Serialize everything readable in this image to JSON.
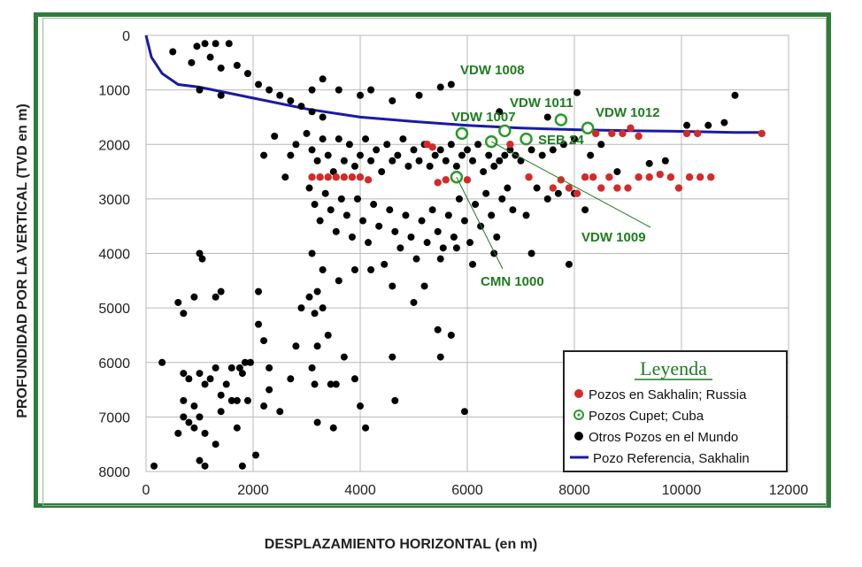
{
  "chart_data": {
    "type": "scatter",
    "xlabel": "DESPLAZAMIENTO HORIZONTAL (en m)",
    "ylabel": "PROFUNDIDAD POR LA VERTICAL (TVD en m)",
    "xlim": [
      0,
      12000
    ],
    "ylim": [
      0,
      8000
    ],
    "y_inverted": true,
    "grid": true,
    "xticks": [
      "0",
      "2000",
      "4000",
      "6000",
      "8000",
      "10000",
      "12000"
    ],
    "yticks": [
      "0",
      "1000",
      "2000",
      "3000",
      "4000",
      "5000",
      "6000",
      "7000",
      "8000"
    ],
    "legend": {
      "title": "Leyenda",
      "position": "bottom-right",
      "items": [
        "Pozos en Sakhalin; Russia",
        "Pozos Cupet; Cuba",
        "Otros Pozos en el Mundo",
        "Pozo Referencia, Sakhalin"
      ]
    },
    "colors": {
      "sakhalin": "#d42a2a",
      "cupet": "#2a9a2a",
      "otros": "#000000",
      "referencia": "#1a1aa6"
    },
    "series": [
      {
        "name": "Pozos en Sakhalin; Russia",
        "points": [
          [
            3100,
            2600
          ],
          [
            3250,
            2600
          ],
          [
            3400,
            2600
          ],
          [
            3550,
            2600
          ],
          [
            3700,
            2600
          ],
          [
            3850,
            2600
          ],
          [
            4000,
            2600
          ],
          [
            4150,
            2650
          ],
          [
            5250,
            2000
          ],
          [
            5350,
            2050
          ],
          [
            5450,
            2700
          ],
          [
            5600,
            2650
          ],
          [
            6000,
            2650
          ],
          [
            6800,
            2000
          ],
          [
            7150,
            2600
          ],
          [
            7600,
            2800
          ],
          [
            7750,
            2650
          ],
          [
            7900,
            2800
          ],
          [
            8050,
            2900
          ],
          [
            8200,
            2600
          ],
          [
            8350,
            2600
          ],
          [
            8500,
            2800
          ],
          [
            8650,
            2600
          ],
          [
            8800,
            2800
          ],
          [
            9000,
            2800
          ],
          [
            9200,
            2600
          ],
          [
            9400,
            2600
          ],
          [
            9600,
            2550
          ],
          [
            9800,
            2600
          ],
          [
            9950,
            2800
          ],
          [
            10150,
            2600
          ],
          [
            10350,
            2600
          ],
          [
            10550,
            2600
          ],
          [
            8400,
            1800
          ],
          [
            8700,
            1800
          ],
          [
            8900,
            1800
          ],
          [
            9050,
            1700
          ],
          [
            9200,
            1850
          ],
          [
            10100,
            1800
          ],
          [
            10300,
            1800
          ],
          [
            11500,
            1800
          ]
        ]
      },
      {
        "name": "Pozos Cupet; Cuba",
        "points": [
          [
            5900,
            1800
          ],
          [
            6700,
            1750
          ],
          [
            7750,
            1550
          ],
          [
            8250,
            1700
          ],
          [
            7100,
            1900
          ],
          [
            6450,
            1950
          ],
          [
            5800,
            2600
          ]
        ]
      },
      {
        "name": "Otros Pozos en el Mundo",
        "points": [
          [
            500,
            300
          ],
          [
            850,
            500
          ],
          [
            950,
            200
          ],
          [
            1100,
            150
          ],
          [
            1300,
            150
          ],
          [
            1550,
            150
          ],
          [
            1200,
            400
          ],
          [
            1400,
            600
          ],
          [
            1700,
            550
          ],
          [
            1900,
            700
          ],
          [
            2100,
            900
          ],
          [
            2300,
            1000
          ],
          [
            2500,
            1100
          ],
          [
            2700,
            1200
          ],
          [
            2900,
            1300
          ],
          [
            3100,
            1400
          ],
          [
            3300,
            1500
          ],
          [
            3100,
            1000
          ],
          [
            3300,
            800
          ],
          [
            3600,
            1000
          ],
          [
            4000,
            1100
          ],
          [
            4200,
            1000
          ],
          [
            4600,
            1200
          ],
          [
            5100,
            1100
          ],
          [
            5500,
            950
          ],
          [
            5700,
            900
          ],
          [
            6600,
            1400
          ],
          [
            7500,
            1500
          ],
          [
            8050,
            1050
          ],
          [
            10100,
            1650
          ],
          [
            10500,
            1650
          ],
          [
            10800,
            1600
          ],
          [
            11000,
            1100
          ],
          [
            1000,
            1000
          ],
          [
            1400,
            1100
          ],
          [
            2200,
            2200
          ],
          [
            2400,
            1850
          ],
          [
            2600,
            2600
          ],
          [
            2700,
            2200
          ],
          [
            2800,
            2000
          ],
          [
            3000,
            1800
          ],
          [
            3100,
            2100
          ],
          [
            3200,
            2300
          ],
          [
            3300,
            1900
          ],
          [
            3400,
            2200
          ],
          [
            3500,
            2500
          ],
          [
            3600,
            1900
          ],
          [
            3700,
            2300
          ],
          [
            3800,
            2000
          ],
          [
            3900,
            2400
          ],
          [
            4000,
            2200
          ],
          [
            4100,
            1900
          ],
          [
            4200,
            2300
          ],
          [
            4300,
            2100
          ],
          [
            4400,
            2500
          ],
          [
            4500,
            2000
          ],
          [
            4600,
            2300
          ],
          [
            4700,
            2200
          ],
          [
            4800,
            1900
          ],
          [
            4900,
            2400
          ],
          [
            5000,
            2100
          ],
          [
            5100,
            2300
          ],
          [
            5200,
            2000
          ],
          [
            5300,
            2400
          ],
          [
            5400,
            2200
          ],
          [
            5500,
            2100
          ],
          [
            5600,
            2300
          ],
          [
            5700,
            2000
          ],
          [
            5800,
            2400
          ],
          [
            5900,
            2200
          ],
          [
            6000,
            2100
          ],
          [
            6100,
            2300
          ],
          [
            6200,
            2000
          ],
          [
            6300,
            2500
          ],
          [
            6400,
            2200
          ],
          [
            6500,
            2400
          ],
          [
            6600,
            2300
          ],
          [
            6700,
            2200
          ],
          [
            6800,
            2100
          ],
          [
            6900,
            2200
          ],
          [
            7000,
            2300
          ],
          [
            7200,
            2100
          ],
          [
            7400,
            2200
          ],
          [
            7600,
            2100
          ],
          [
            7800,
            2000
          ],
          [
            8000,
            1900
          ],
          [
            8300,
            2200
          ],
          [
            8500,
            2000
          ],
          [
            8800,
            2500
          ],
          [
            9400,
            2350
          ],
          [
            9700,
            2300
          ],
          [
            3050,
            2800
          ],
          [
            3150,
            3100
          ],
          [
            3250,
            3400
          ],
          [
            3350,
            2900
          ],
          [
            3450,
            3200
          ],
          [
            3550,
            3600
          ],
          [
            3650,
            3000
          ],
          [
            3750,
            3300
          ],
          [
            3850,
            3700
          ],
          [
            3950,
            3000
          ],
          [
            4050,
            3400
          ],
          [
            4150,
            3800
          ],
          [
            4250,
            3100
          ],
          [
            4350,
            3500
          ],
          [
            4450,
            4200
          ],
          [
            4550,
            3200
          ],
          [
            4650,
            3600
          ],
          [
            4750,
            3900
          ],
          [
            4850,
            3300
          ],
          [
            4950,
            3700
          ],
          [
            5050,
            4100
          ],
          [
            5150,
            3400
          ],
          [
            5250,
            3800
          ],
          [
            5350,
            3200
          ],
          [
            5450,
            3600
          ],
          [
            5550,
            3900
          ],
          [
            5650,
            3300
          ],
          [
            5750,
            3700
          ],
          [
            5850,
            3000
          ],
          [
            5950,
            3400
          ],
          [
            6050,
            3800
          ],
          [
            6150,
            3100
          ],
          [
            6250,
            3500
          ],
          [
            6350,
            2900
          ],
          [
            6450,
            3300
          ],
          [
            6550,
            3700
          ],
          [
            6650,
            3000
          ],
          [
            6750,
            2800
          ],
          [
            6850,
            3200
          ],
          [
            7100,
            3300
          ],
          [
            7300,
            2800
          ],
          [
            7500,
            3000
          ],
          [
            7700,
            2900
          ],
          [
            8000,
            2900
          ],
          [
            8200,
            3200
          ],
          [
            3100,
            4000
          ],
          [
            3300,
            4300
          ],
          [
            3600,
            4500
          ],
          [
            3900,
            4300
          ],
          [
            4200,
            4300
          ],
          [
            4600,
            4600
          ],
          [
            5000,
            4900
          ],
          [
            5200,
            4600
          ],
          [
            5500,
            4100
          ],
          [
            5800,
            3900
          ],
          [
            6100,
            4200
          ],
          [
            6500,
            4000
          ],
          [
            7200,
            4000
          ],
          [
            7900,
            4200
          ],
          [
            3050,
            4800
          ],
          [
            3150,
            5100
          ],
          [
            3300,
            5000
          ],
          [
            3100,
            6100
          ],
          [
            3150,
            6400
          ],
          [
            3200,
            5700
          ],
          [
            3450,
            6400
          ],
          [
            3550,
            6400
          ],
          [
            3700,
            5900
          ],
          [
            3900,
            6300
          ],
          [
            4000,
            6800
          ],
          [
            4100,
            7200
          ],
          [
            4600,
            5900
          ],
          [
            4650,
            6700
          ],
          [
            3200,
            4700
          ],
          [
            3400,
            5500
          ],
          [
            3500,
            7200
          ],
          [
            3200,
            7100
          ],
          [
            2900,
            5000
          ],
          [
            2800,
            5700
          ],
          [
            2700,
            6300
          ],
          [
            2500,
            6900
          ],
          [
            2300,
            6100
          ],
          [
            2200,
            6800
          ],
          [
            2100,
            5300
          ],
          [
            2050,
            7700
          ],
          [
            2100,
            4700
          ],
          [
            2200,
            5600
          ],
          [
            2300,
            6500
          ],
          [
            5700,
            5500
          ],
          [
            5450,
            5400
          ],
          [
            5500,
            5900
          ],
          [
            5950,
            6900
          ],
          [
            1000,
            4000
          ],
          [
            1050,
            4100
          ],
          [
            700,
            5100
          ],
          [
            900,
            4800
          ],
          [
            1300,
            4800
          ],
          [
            1400,
            4700
          ],
          [
            600,
            4900
          ],
          [
            300,
            6000
          ],
          [
            150,
            7900
          ],
          [
            700,
            6200
          ],
          [
            800,
            6300
          ],
          [
            900,
            6800
          ],
          [
            1000,
            6200
          ],
          [
            1100,
            6400
          ],
          [
            1200,
            6300
          ],
          [
            1300,
            6100
          ],
          [
            1400,
            6600
          ],
          [
            1500,
            6400
          ],
          [
            1600,
            6100
          ],
          [
            1700,
            6700
          ],
          [
            1750,
            6100
          ],
          [
            1800,
            6200
          ],
          [
            1850,
            6000
          ],
          [
            700,
            6700
          ],
          [
            800,
            7100
          ],
          [
            900,
            7200
          ],
          [
            1000,
            7000
          ],
          [
            1100,
            7300
          ],
          [
            1300,
            7500
          ],
          [
            1400,
            6900
          ],
          [
            1600,
            6700
          ],
          [
            1700,
            7200
          ],
          [
            1800,
            7900
          ],
          [
            600,
            7300
          ],
          [
            700,
            7000
          ],
          [
            1000,
            7800
          ],
          [
            1100,
            7900
          ],
          [
            1900,
            6700
          ],
          [
            1950,
            6000
          ]
        ]
      },
      {
        "name": "Pozo Referencia, Sakhalin",
        "line": [
          [
            0,
            0
          ],
          [
            100,
            400
          ],
          [
            300,
            700
          ],
          [
            600,
            900
          ],
          [
            1000,
            950
          ],
          [
            2000,
            1150
          ],
          [
            3000,
            1350
          ],
          [
            4000,
            1500
          ],
          [
            5000,
            1580
          ],
          [
            6000,
            1650
          ],
          [
            7000,
            1700
          ],
          [
            8000,
            1730
          ],
          [
            9000,
            1750
          ],
          [
            10000,
            1760
          ],
          [
            11000,
            1780
          ],
          [
            11500,
            1780
          ]
        ]
      }
    ],
    "annotations": [
      {
        "text": "VDW 1008",
        "target": [
          5900,
          1800
        ]
      },
      {
        "text": "VDW 1007",
        "target": [
          6700,
          1750
        ]
      },
      {
        "text": "VDW 1011",
        "target": [
          7750,
          1550
        ]
      },
      {
        "text": "VDW 1012",
        "target": [
          8250,
          1700
        ]
      },
      {
        "text": "SEB 24",
        "target": [
          7100,
          1900
        ]
      },
      {
        "text": "VDW 1009",
        "target": [
          6450,
          1950
        ]
      },
      {
        "text": "CMN 1000",
        "target": [
          5800,
          2600
        ]
      }
    ]
  }
}
